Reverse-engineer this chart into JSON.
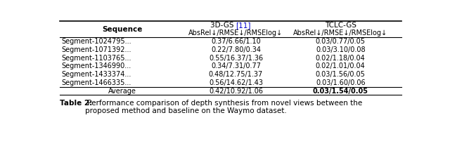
{
  "title": "Table 2:",
  "caption": " Performance comparison of depth synthesis from novel views between the\nproposed method and baseline on the Waymo dataset.",
  "header_col1": "Sequence",
  "header_col2_main": "3D-GS ",
  "header_col2_ref": "[11]",
  "header_col2_sub": "AbsRel↓/RMSE↓/RMSElog↓",
  "header_col3_main": "TCLC-GS",
  "header_col3_sub": "AbsRel↓/RMSE↓/RMSElog↓",
  "rows": [
    [
      "Segment-1024795...",
      "0.37/6.66/1.10",
      "0.03/0.77/0.05"
    ],
    [
      "Segment-1071392...",
      "0.22/7.80/0.34",
      "0.03/3.10/0.08"
    ],
    [
      "Segment-1103765...",
      "0.55/16.37/1.36",
      "0.02/1.18/0.04"
    ],
    [
      "Segment-1346990...",
      "0.34/7.31/0.77",
      "0.02/1.01/0.04"
    ],
    [
      "Segment-1433374...",
      "0.48/12.75/1.37",
      "0.03/1.56/0.05"
    ],
    [
      "Segment-1466335...",
      "0.56/14.62/1.43",
      "0.03/1.60/0.06"
    ]
  ],
  "average_row": [
    "Average",
    "0.42/10.92/1.06",
    "0.03/1.54/0.05"
  ],
  "bg_color": "#ffffff",
  "text_color": "#000000",
  "ref_color": "#0000cc"
}
